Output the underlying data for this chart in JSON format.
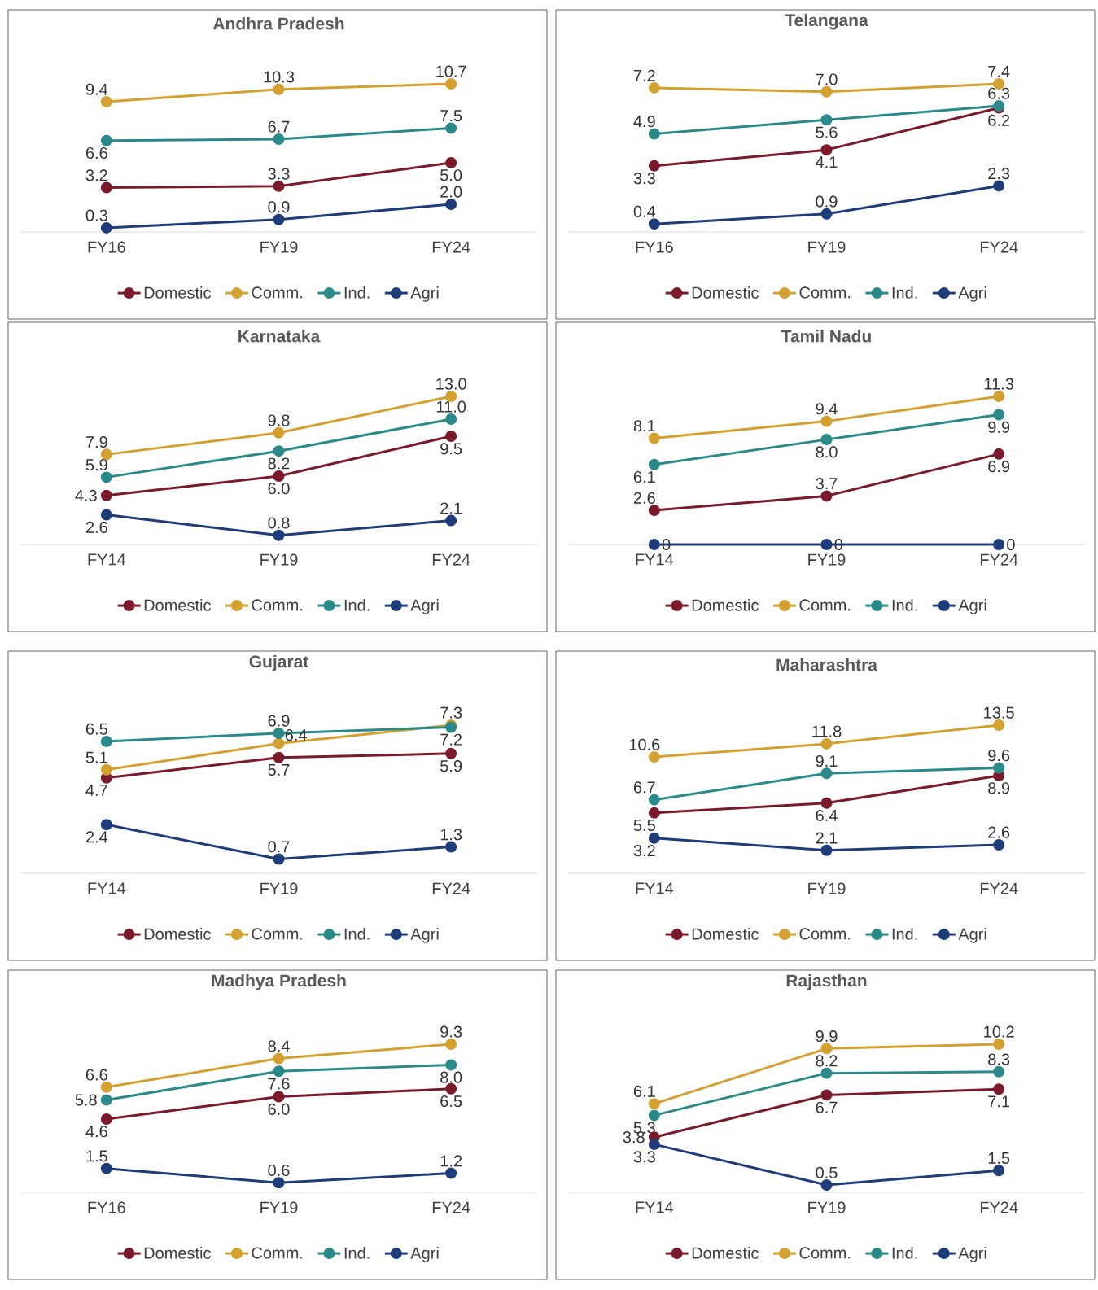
{
  "chart_data": [
    {
      "type": "line",
      "title": "Andhra Pradesh",
      "categories": [
        "FY16",
        "FY19",
        "FY24"
      ],
      "marker": "circle",
      "line_style": "solid",
      "legend": "bottom",
      "series": [
        {
          "name": "Domestic",
          "color": "#7b1a2a",
          "values": [
            3.2,
            3.3,
            5.0
          ],
          "value_labels": [
            "3.2",
            "3.3",
            "5.0"
          ]
        },
        {
          "name": "Comm.",
          "color": "#d4a02f",
          "values": [
            9.4,
            10.3,
            10.7
          ],
          "value_labels": [
            "9.4",
            "10.3",
            "10.7"
          ]
        },
        {
          "name": "Ind.",
          "color": "#2a8a8a",
          "values": [
            6.6,
            6.7,
            7.5
          ],
          "value_labels": [
            "6.6",
            "6.7",
            "7.5"
          ]
        },
        {
          "name": "Agri",
          "color": "#1f3c7a",
          "values": [
            0.3,
            0.9,
            2.0
          ],
          "value_labels": [
            "0.3",
            "0.9",
            "2.0"
          ]
        }
      ]
    },
    {
      "type": "line",
      "title": "Telangana",
      "categories": [
        "FY16",
        "FY19",
        "FY24"
      ],
      "marker": "circle",
      "line_style": "solid",
      "legend": "bottom",
      "series": [
        {
          "name": "Domestic",
          "color": "#7b1a2a",
          "values": [
            3.3,
            4.1,
            6.2
          ],
          "value_labels": [
            "3.3",
            "4.1",
            "6.2"
          ]
        },
        {
          "name": "Comm.",
          "color": "#d4a02f",
          "values": [
            7.2,
            7.0,
            7.4
          ],
          "value_labels": [
            "7.2",
            "7.0",
            "7.4"
          ]
        },
        {
          "name": "Ind.",
          "color": "#2a8a8a",
          "values": [
            4.9,
            5.6,
            6.3
          ],
          "value_labels": [
            "4.9",
            "5.6",
            "6.3"
          ]
        },
        {
          "name": "Agri",
          "color": "#1f3c7a",
          "values": [
            0.4,
            0.9,
            2.3
          ],
          "value_labels": [
            "0.4",
            "0.9",
            "2.3"
          ]
        }
      ]
    },
    {
      "type": "line",
      "title": "Karnataka",
      "categories": [
        "FY14",
        "FY19",
        "FY24"
      ],
      "marker": "circle",
      "line_style": "solid",
      "legend": "bottom",
      "series": [
        {
          "name": "Domestic",
          "color": "#7b1a2a",
          "values": [
            4.3,
            6.0,
            9.5
          ],
          "value_labels": [
            "4.3",
            "6.0",
            "9.5"
          ]
        },
        {
          "name": "Comm.",
          "color": "#d4a02f",
          "values": [
            7.9,
            9.8,
            13.0
          ],
          "value_labels": [
            "7.9",
            "9.8",
            "13.0"
          ]
        },
        {
          "name": "Ind.",
          "color": "#2a8a8a",
          "values": [
            5.9,
            8.2,
            11.0
          ],
          "value_labels": [
            "5.9",
            "8.2",
            "11.0"
          ]
        },
        {
          "name": "Agri",
          "color": "#1f3c7a",
          "values": [
            2.6,
            0.8,
            2.1
          ],
          "value_labels": [
            "2.6",
            "0.8",
            "2.1"
          ]
        }
      ]
    },
    {
      "type": "line",
      "title": "Tamil Nadu",
      "categories": [
        "FY14",
        "FY19",
        "FY24"
      ],
      "marker": "circle",
      "line_style": "solid",
      "legend": "bottom",
      "series": [
        {
          "name": "Domestic",
          "color": "#7b1a2a",
          "values": [
            2.6,
            3.7,
            6.9
          ],
          "value_labels": [
            "2.6",
            "3.7",
            "6.9"
          ]
        },
        {
          "name": "Comm.",
          "color": "#d4a02f",
          "values": [
            8.1,
            9.4,
            11.3
          ],
          "value_labels": [
            "8.1",
            "9.4",
            "11.3"
          ]
        },
        {
          "name": "Ind.",
          "color": "#2a8a8a",
          "values": [
            6.1,
            8.0,
            9.9
          ],
          "value_labels": [
            "6.1",
            "8.0",
            "9.9"
          ]
        },
        {
          "name": "Agri",
          "color": "#1f3c7a",
          "values": [
            0,
            0,
            0
          ],
          "value_labels": [
            "0",
            "0",
            "0"
          ]
        }
      ]
    },
    {
      "type": "line",
      "title": "Gujarat",
      "categories": [
        "FY14",
        "FY19",
        "FY24"
      ],
      "marker": "circle",
      "line_style": "solid",
      "legend": "bottom",
      "series": [
        {
          "name": "Domestic",
          "color": "#7b1a2a",
          "values": [
            4.7,
            5.7,
            5.9
          ],
          "value_labels": [
            "4.7",
            "5.7",
            "5.9"
          ]
        },
        {
          "name": "Comm.",
          "color": "#d4a02f",
          "values": [
            5.1,
            6.4,
            7.3
          ],
          "value_labels": [
            "5.1",
            "6.4",
            "7.3"
          ]
        },
        {
          "name": "Ind.",
          "color": "#2a8a8a",
          "values": [
            6.5,
            6.9,
            7.2
          ],
          "value_labels": [
            "6.5",
            "6.9",
            "7.2"
          ]
        },
        {
          "name": "Agri",
          "color": "#1f3c7a",
          "values": [
            2.4,
            0.7,
            1.3
          ],
          "value_labels": [
            "2.4",
            "0.7",
            "1.3"
          ]
        }
      ]
    },
    {
      "type": "line",
      "title": "Maharashtra",
      "categories": [
        "FY14",
        "FY19",
        "FY24"
      ],
      "marker": "circle",
      "line_style": "solid",
      "legend": "bottom",
      "series": [
        {
          "name": "Domestic",
          "color": "#7b1a2a",
          "values": [
            5.5,
            6.4,
            8.9
          ],
          "value_labels": [
            "5.5",
            "6.4",
            "8.9"
          ]
        },
        {
          "name": "Comm.",
          "color": "#d4a02f",
          "values": [
            10.6,
            11.8,
            13.5
          ],
          "value_labels": [
            "10.6",
            "11.8",
            "13.5"
          ]
        },
        {
          "name": "Ind.",
          "color": "#2a8a8a",
          "values": [
            6.7,
            9.1,
            9.6
          ],
          "value_labels": [
            "6.7",
            "9.1",
            "9.6"
          ]
        },
        {
          "name": "Agri",
          "color": "#1f3c7a",
          "values": [
            3.2,
            2.1,
            2.6
          ],
          "value_labels": [
            "3.2",
            "2.1",
            "2.6"
          ]
        }
      ]
    },
    {
      "type": "line",
      "title": "Madhya Pradesh",
      "categories": [
        "FY16",
        "FY19",
        "FY24"
      ],
      "marker": "circle",
      "line_style": "solid",
      "legend": "bottom",
      "series": [
        {
          "name": "Domestic",
          "color": "#7b1a2a",
          "values": [
            4.6,
            6.0,
            6.5
          ],
          "value_labels": [
            "4.6",
            "6.0",
            "6.5"
          ]
        },
        {
          "name": "Comm.",
          "color": "#d4a02f",
          "values": [
            6.6,
            8.4,
            9.3
          ],
          "value_labels": [
            "6.6",
            "8.4",
            "9.3"
          ]
        },
        {
          "name": "Ind.",
          "color": "#2a8a8a",
          "values": [
            5.8,
            7.6,
            8.0
          ],
          "value_labels": [
            "5.8",
            "7.6",
            "8.0"
          ]
        },
        {
          "name": "Agri",
          "color": "#1f3c7a",
          "values": [
            1.5,
            0.6,
            1.2
          ],
          "value_labels": [
            "1.5",
            "0.6",
            "1.2"
          ]
        }
      ]
    },
    {
      "type": "line",
      "title": "Rajasthan",
      "categories": [
        "FY14",
        "FY19",
        "FY24"
      ],
      "marker": "circle",
      "line_style": "solid",
      "legend": "bottom",
      "series": [
        {
          "name": "Domestic",
          "color": "#7b1a2a",
          "values": [
            3.8,
            6.7,
            7.1
          ],
          "value_labels": [
            "3.8",
            "6.7",
            "7.1"
          ]
        },
        {
          "name": "Comm.",
          "color": "#d4a02f",
          "values": [
            6.1,
            9.9,
            10.2
          ],
          "value_labels": [
            "6.1",
            "9.9",
            "10.2"
          ]
        },
        {
          "name": "Ind.",
          "color": "#2a8a8a",
          "values": [
            5.3,
            8.2,
            8.3
          ],
          "value_labels": [
            "5.3",
            "8.2",
            "8.3"
          ]
        },
        {
          "name": "Agri",
          "color": "#1f3c7a",
          "values": [
            3.3,
            0.5,
            1.5
          ],
          "value_labels": [
            "3.3",
            "0.5",
            "1.5"
          ]
        }
      ]
    }
  ]
}
